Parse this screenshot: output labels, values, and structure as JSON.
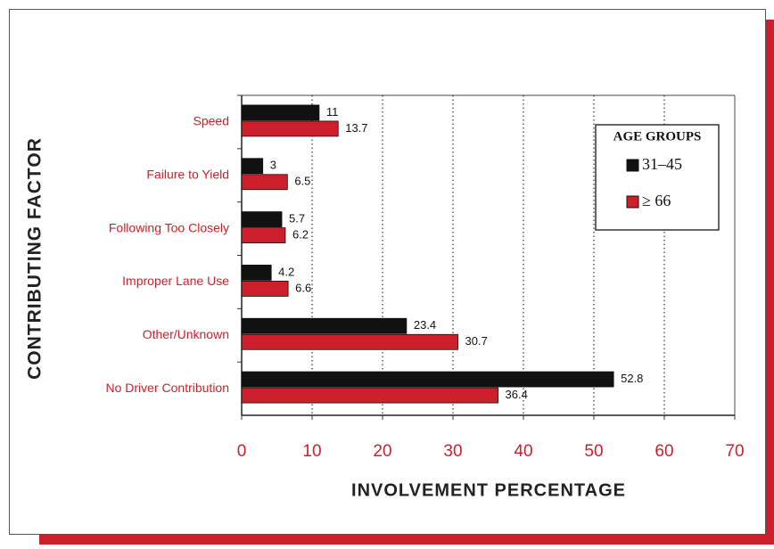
{
  "chart_data": {
    "type": "hbar",
    "xlabel": "INVOLVEMENT PERCENTAGE",
    "ylabel": "CONTRIBUTING FACTOR",
    "categories": [
      "Speed",
      "Failure to Yield",
      "Following Too Closely",
      "Improper Lane Use",
      "Other/Unknown",
      "No Driver Contribution"
    ],
    "series": [
      {
        "name": "31–45",
        "color": "#111111",
        "values": [
          11,
          3,
          5.7,
          4.2,
          23.4,
          52.8
        ]
      },
      {
        "name": "≥ 66",
        "color": "#cc1f2b",
        "values": [
          13.7,
          6.5,
          6.2,
          6.6,
          30.7,
          36.4
        ]
      }
    ],
    "legend_title": "AGE GROUPS",
    "legend": "upper right",
    "xlim": [
      0,
      70
    ],
    "xticks": [
      0,
      10,
      20,
      30,
      40,
      50,
      60,
      70
    ],
    "grid": true
  }
}
